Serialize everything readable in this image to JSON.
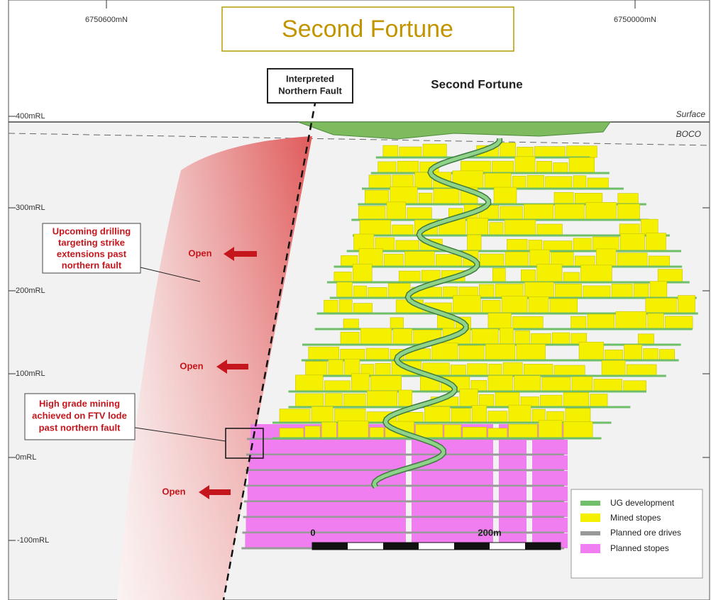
{
  "title": "Second Fortune",
  "northings": [
    "6750600mN",
    "6750000mN"
  ],
  "levels": [
    "400mRL",
    "300mRL",
    "200mRL",
    "100mRL",
    "0mRL",
    "-100mRL"
  ],
  "fault_label": [
    "Interpreted",
    "Northern Fault"
  ],
  "deposit_label": "Second Fortune",
  "surface_label": "Surface",
  "boco_label": "BOCO",
  "callouts": [
    {
      "lines": [
        "Upcoming drilling",
        "targeting strike",
        "extensions past",
        "northern fault"
      ]
    },
    {
      "lines": [
        "High grade mining",
        "achieved on FTV lode",
        "past northern fault"
      ]
    }
  ],
  "open_labels": [
    "Open",
    "Open",
    "Open"
  ],
  "legend": [
    "UG development",
    "Mined stopes",
    "Planned ore drives",
    "Planned stopes"
  ],
  "scale": [
    "0",
    "200m"
  ]
}
